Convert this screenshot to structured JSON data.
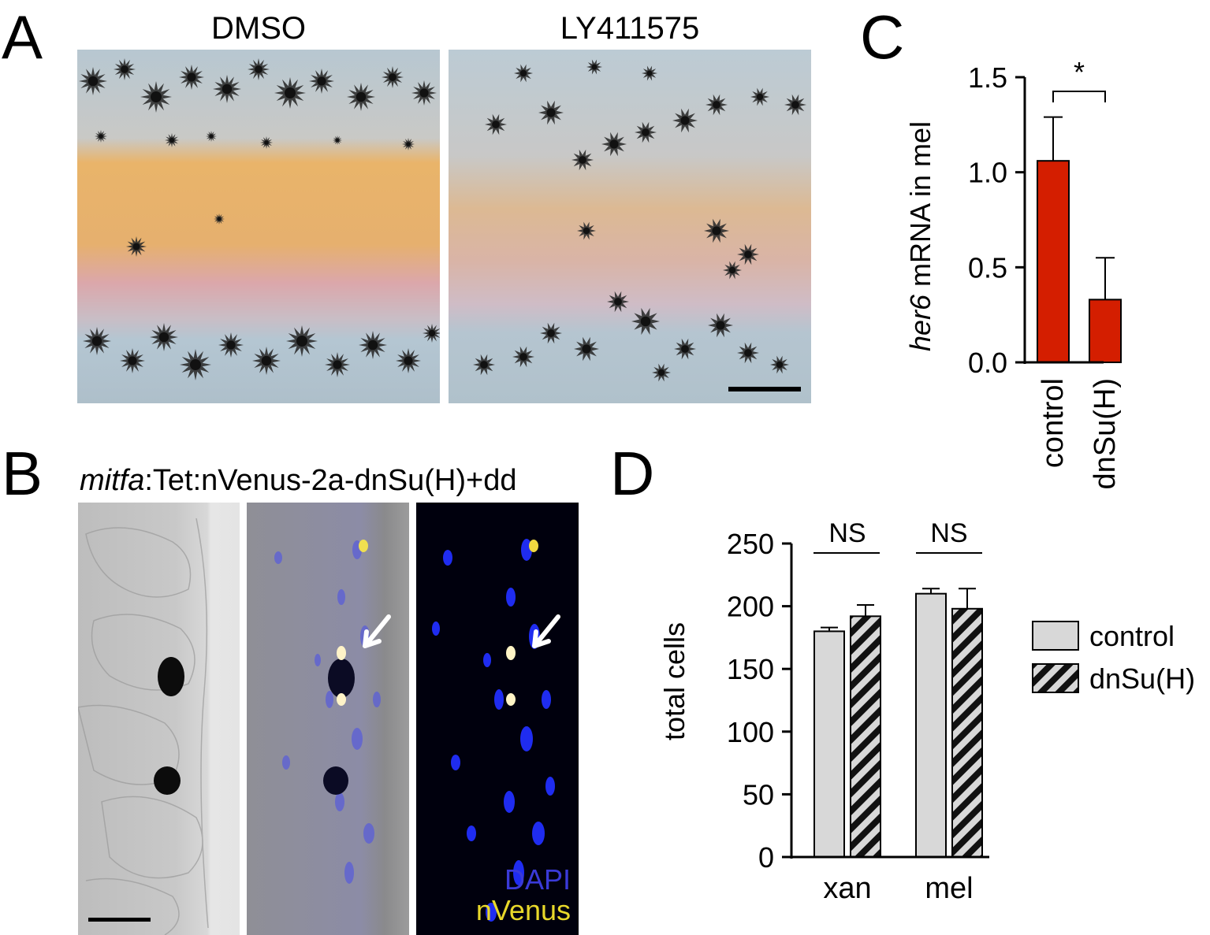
{
  "panels": {
    "A": {
      "letter": "A",
      "titles": [
        "DMSO",
        "LY411575"
      ]
    },
    "B": {
      "letter": "B",
      "title_italic": "mitfa",
      "title_rest": ":Tet:nVenus-2a-dnSu(H)+dd",
      "labels": {
        "dapi": "DAPI",
        "nvenus": "nVenus"
      }
    },
    "C": {
      "letter": "C",
      "ylabel_italic": "her6",
      "ylabel_rest": " mRNA in mel",
      "significance": "*"
    },
    "D": {
      "letter": "D",
      "ylabel": "total cells",
      "significance": [
        "NS",
        "NS"
      ]
    }
  },
  "chart_data": [
    {
      "panel": "C",
      "type": "bar",
      "categories": [
        "control",
        "dnSu(H)"
      ],
      "values": [
        1.06,
        0.33
      ],
      "errors": [
        0.23,
        0.22
      ],
      "ylim": [
        0,
        1.5
      ],
      "yticks": [
        "0.0",
        "0.5",
        "1.0",
        "1.5"
      ],
      "ylabel": "her6 mRNA in mel",
      "colors": [
        "#d41e00",
        "#d41e00"
      ]
    },
    {
      "panel": "D",
      "type": "bar",
      "categories": [
        "xan",
        "mel"
      ],
      "series": [
        {
          "name": "control",
          "values": [
            180,
            210
          ],
          "errors": [
            3,
            4
          ],
          "color": "#d8d8d8",
          "pattern": "solid"
        },
        {
          "name": "dnSu(H)",
          "values": [
            192,
            198
          ],
          "errors": [
            9,
            16
          ],
          "color": "#d8d8d8",
          "pattern": "hatched"
        }
      ],
      "ylim": [
        0,
        250
      ],
      "yticks": [
        "0",
        "50",
        "100",
        "150",
        "200",
        "250"
      ],
      "ylabel": "total cells",
      "legend": "right"
    }
  ]
}
